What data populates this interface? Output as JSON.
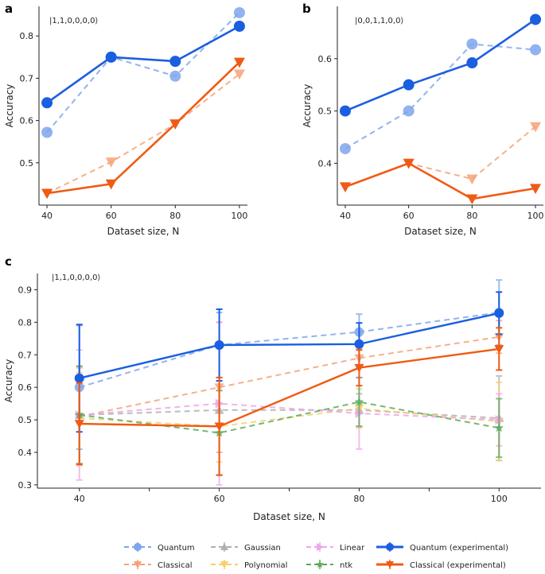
{
  "panel_labels": [
    "a",
    "b",
    "c"
  ],
  "styles": {
    "quantum": {
      "color": "#7ea6ec",
      "dash": true,
      "marker": "circle"
    },
    "classical": {
      "color": "#f4a278",
      "dash": true,
      "marker": "tri_down"
    },
    "gaussian": {
      "color": "#b0b0b0",
      "dash": true,
      "marker": "tri_up"
    },
    "polynomial": {
      "color": "#f6cf6f",
      "dash": true,
      "marker": "tri_down"
    },
    "linear": {
      "color": "#efa6ea",
      "dash": true,
      "marker": "tri_right"
    },
    "ntk": {
      "color": "#5aab5a",
      "dash": true,
      "marker": "star"
    },
    "quantum_exp": {
      "color": "#1a5fe0",
      "dash": false,
      "marker": "circle"
    },
    "classical_exp": {
      "color": "#f05a14",
      "dash": false,
      "marker": "tri_down"
    }
  },
  "chart_data": [
    {
      "id": "a",
      "type": "line",
      "annotation": "|1,1,0,0,0,0⟩",
      "xlabel": "Dataset size, N",
      "ylabel": "Accuracy",
      "x": [
        40,
        60,
        80,
        100
      ],
      "xlim": [
        37.5,
        102.5
      ],
      "ylim": [
        0.4,
        0.87
      ],
      "xticks": [
        "40",
        "60",
        "80",
        "100"
      ],
      "yticks": [
        "0.5",
        "0.6",
        "0.7",
        "0.8"
      ],
      "series": [
        {
          "name": "Quantum",
          "style": "quantum",
          "values": [
            0.572,
            0.75,
            0.705,
            0.855
          ]
        },
        {
          "name": "Classical",
          "style": "classical",
          "values": [
            0.428,
            0.502,
            0.592,
            0.71
          ]
        },
        {
          "name": "Quantum (experimental)",
          "style": "quantum_exp",
          "values": [
            0.642,
            0.75,
            0.74,
            0.823
          ]
        },
        {
          "name": "Classical (experimental)",
          "style": "classical_exp",
          "values": [
            0.428,
            0.45,
            0.592,
            0.738
          ]
        }
      ]
    },
    {
      "id": "b",
      "type": "line",
      "annotation": "|0,0,1,1,0,0⟩",
      "xlabel": "Dataset size, N",
      "ylabel": "Accuracy",
      "x": [
        40,
        60,
        80,
        100
      ],
      "xlim": [
        37.5,
        102.5
      ],
      "ylim": [
        0.32,
        0.7
      ],
      "xticks": [
        "40",
        "60",
        "80",
        "100"
      ],
      "yticks": [
        "0.4",
        "0.5",
        "0.6"
      ],
      "series": [
        {
          "name": "Quantum",
          "style": "quantum",
          "values": [
            0.428,
            0.5,
            0.628,
            0.617
          ]
        },
        {
          "name": "Classical",
          "style": "classical",
          "values": [
            0.355,
            0.4,
            0.37,
            0.47
          ]
        },
        {
          "name": "Quantum (experimental)",
          "style": "quantum_exp",
          "values": [
            0.5,
            0.55,
            0.592,
            0.675
          ]
        },
        {
          "name": "Classical (experimental)",
          "style": "classical_exp",
          "values": [
            0.355,
            0.4,
            0.332,
            0.352
          ]
        }
      ]
    },
    {
      "id": "c",
      "type": "line",
      "annotation": "|1,1,0,0,0,0⟩",
      "xlabel": "Dataset size, N",
      "ylabel": "Accuracy",
      "x": [
        40,
        60,
        80,
        100
      ],
      "xlim": [
        34,
        106
      ],
      "ylim": [
        0.29,
        0.95
      ],
      "xticks": [
        "40",
        "60",
        "80",
        "100"
      ],
      "yticks": [
        "0.3",
        "0.4",
        "0.5",
        "0.6",
        "0.7",
        "0.8",
        "0.9"
      ],
      "series": [
        {
          "name": "Quantum",
          "style": "quantum",
          "values": [
            0.6,
            0.73,
            0.77,
            0.83
          ],
          "err": [
            0.19,
            0.1,
            0.055,
            0.1
          ]
        },
        {
          "name": "Classical",
          "style": "classical",
          "values": [
            0.51,
            0.6,
            0.69,
            0.755
          ],
          "err": [
            0.15,
            0.2,
            0.03,
            0.05
          ]
        },
        {
          "name": "Gaussian",
          "style": "gaussian",
          "values": [
            0.515,
            0.53,
            0.53,
            0.505
          ],
          "err": [
            0.15,
            0.2,
            0.05,
            0.13
          ]
        },
        {
          "name": "Polynomial",
          "style": "polynomial",
          "values": [
            0.505,
            0.48,
            0.535,
            0.495
          ],
          "err": [
            0.14,
            0.11,
            0.06,
            0.12
          ]
        },
        {
          "name": "Linear",
          "style": "linear",
          "values": [
            0.515,
            0.55,
            0.52,
            0.5
          ],
          "err": [
            0.2,
            0.25,
            0.11,
            0.08
          ]
        },
        {
          "name": "ntk",
          "style": "ntk",
          "values": [
            0.515,
            0.46,
            0.555,
            0.475
          ],
          "err": [
            0.15,
            0.13,
            0.075,
            0.09
          ]
        },
        {
          "name": "Quantum (experimental)",
          "style": "quantum_exp",
          "values": [
            0.628,
            0.73,
            0.733,
            0.828
          ],
          "err": [
            0.165,
            0.11,
            0.065,
            0.065
          ]
        },
        {
          "name": "Classical (experimental)",
          "style": "classical_exp",
          "values": [
            0.488,
            0.48,
            0.66,
            0.718
          ],
          "err": [
            0.125,
            0.15,
            0.055,
            0.065
          ]
        }
      ]
    }
  ],
  "legend": [
    {
      "label": "Quantum",
      "style": "quantum"
    },
    {
      "label": "Gaussian",
      "style": "gaussian"
    },
    {
      "label": "Linear",
      "style": "linear"
    },
    {
      "label": "Quantum (experimental)",
      "style": "quantum_exp"
    },
    {
      "label": "Classical",
      "style": "classical"
    },
    {
      "label": "Polynomial",
      "style": "polynomial"
    },
    {
      "label": "ntk",
      "style": "ntk"
    },
    {
      "label": "Classical (experimental)",
      "style": "classical_exp"
    }
  ]
}
